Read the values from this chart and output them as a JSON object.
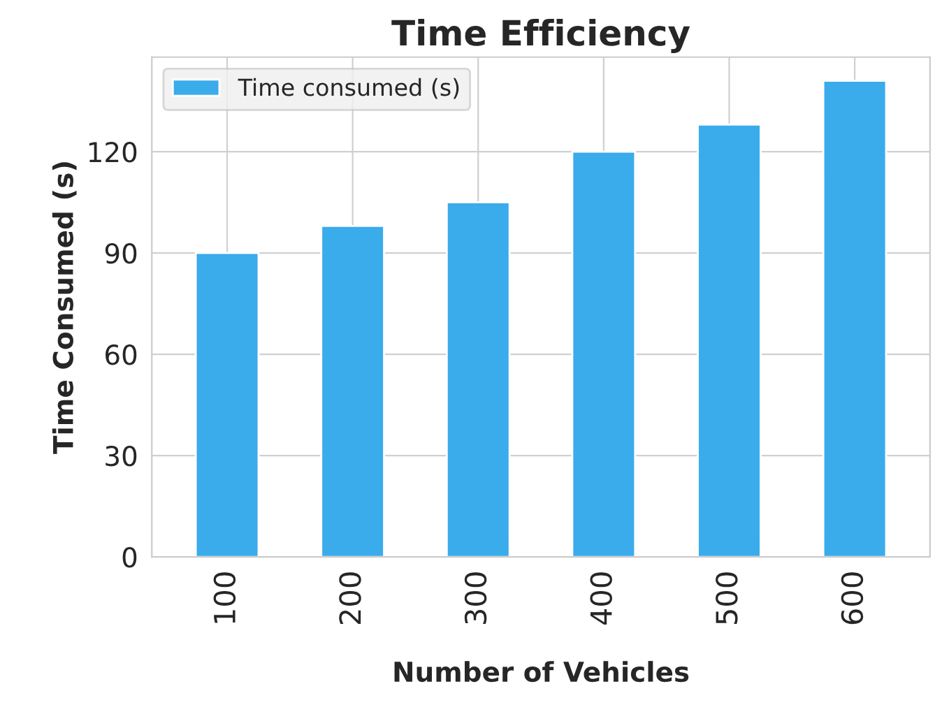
{
  "chart_data": {
    "type": "bar",
    "title": "Time Efficiency",
    "xlabel": "Number of Vehicles",
    "ylabel": "Time Consumed (s)",
    "categories": [
      "100",
      "200",
      "300",
      "400",
      "500",
      "600"
    ],
    "series": [
      {
        "name": "Time consumed (s)",
        "color": "#3aabeb",
        "values": [
          90,
          98,
          105,
          120,
          128,
          141
        ]
      }
    ],
    "ylim": [
      0,
      148
    ],
    "yticks": [
      0,
      30,
      60,
      90,
      120
    ],
    "grid": true,
    "legend": "top left"
  }
}
